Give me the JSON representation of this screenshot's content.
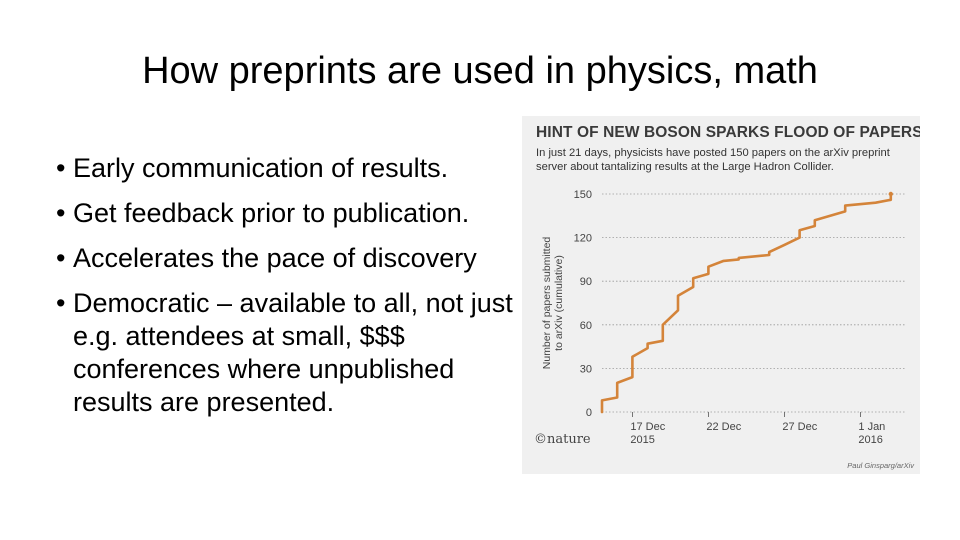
{
  "slide": {
    "title": "How preprints are used in physics, math",
    "bullets": [
      "Early communication of results.",
      "Get feedback prior to publication.",
      "Accelerates the pace of discovery",
      "Democratic – available to all, not just e.g. attendees at small, $$$ conferences where unpublished results are presented."
    ],
    "bullet_glyph": "•"
  },
  "figure": {
    "brand": "©nature",
    "credit": "Paul Ginsparg/arXiv"
  },
  "colors": {
    "line": "#d4843a",
    "background": "#f0f0f0",
    "grid": "#9a9a9a"
  },
  "chart_data": {
    "type": "line",
    "title": "HINT OF NEW BOSON SPARKS FLOOD OF PAPERS",
    "subtitle": "In just 21 days, physicists have posted 150 papers on the arXiv preprint server about tantalizing results at the Large Hadron Collider.",
    "xlabel": "",
    "ylabel": "Number of papers submitted to arXiv (cumulative)",
    "ylim": [
      0,
      150
    ],
    "xlim": [
      "2015-12-15",
      "2016-01-04"
    ],
    "yticks": [
      0,
      30,
      60,
      90,
      120,
      150
    ],
    "xticks": [
      {
        "x": "2015-12-17",
        "label_lines": [
          "17 Dec",
          "2015"
        ]
      },
      {
        "x": "2015-12-22",
        "label_lines": [
          "22 Dec"
        ]
      },
      {
        "x": "2015-12-27",
        "label_lines": [
          "27 Dec"
        ]
      },
      {
        "x": "2016-01-01",
        "label_lines": [
          "1 Jan",
          "2016"
        ]
      }
    ],
    "grid": "horizontal dotted",
    "series": [
      {
        "x": [
          "2015-12-15",
          "2015-12-15",
          "2015-12-16",
          "2015-12-16",
          "2015-12-17",
          "2015-12-17",
          "2015-12-17",
          "2015-12-18",
          "2015-12-18",
          "2015-12-18",
          "2015-12-19",
          "2015-12-19",
          "2015-12-19",
          "2015-12-20",
          "2015-12-20",
          "2015-12-21",
          "2015-12-21",
          "2015-12-21",
          "2015-12-22",
          "2015-12-22",
          "2015-12-23",
          "2015-12-24",
          "2015-12-24",
          "2015-12-26",
          "2015-12-26",
          "2015-12-27",
          "2015-12-28",
          "2015-12-28",
          "2015-12-29",
          "2015-12-29",
          "2015-12-31",
          "2015-12-31",
          "2016-01-02",
          "2016-01-03",
          "2016-01-03"
        ],
        "y": [
          0,
          8,
          10,
          20,
          24,
          35,
          38,
          44,
          46,
          47,
          49,
          52,
          60,
          70,
          80,
          86,
          88,
          92,
          95,
          100,
          104,
          105,
          106,
          108,
          110,
          115,
          120,
          125,
          128,
          132,
          138,
          142,
          144,
          146,
          150
        ]
      }
    ]
  }
}
